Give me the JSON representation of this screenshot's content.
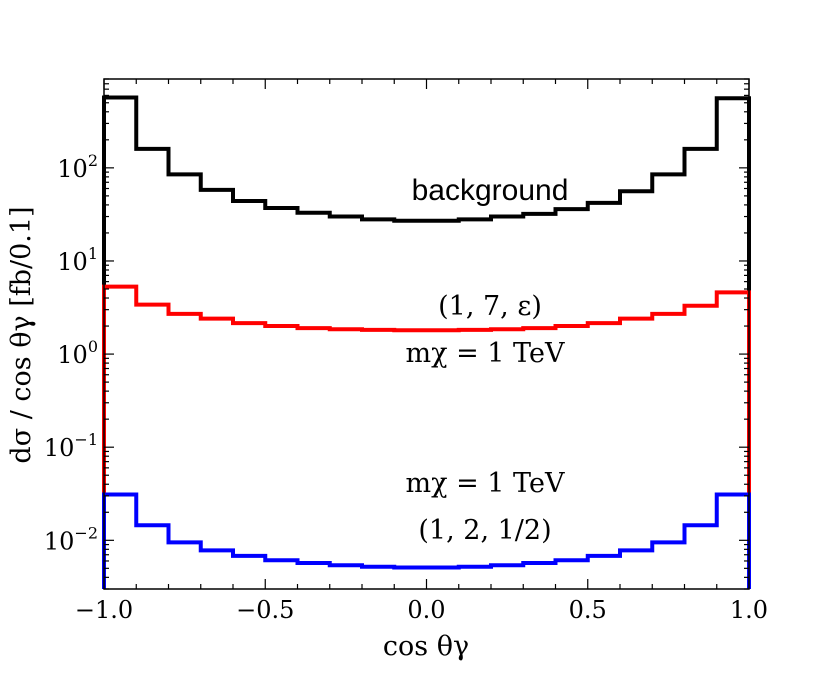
{
  "chart_data": {
    "type": "step",
    "title": "",
    "xlabel": "cos θγ",
    "ylabel": "dσ / cos θγ [fb/0.1]",
    "xlim": [
      -1.0,
      1.0
    ],
    "ylim": [
      0.003,
      900
    ],
    "yscale": "log",
    "x_ticks": [
      {
        "value": -1.0,
        "label": "−1.0"
      },
      {
        "value": -0.5,
        "label": "−0.5"
      },
      {
        "value": 0.0,
        "label": "0.0"
      },
      {
        "value": 0.5,
        "label": "0.5"
      },
      {
        "value": 1.0,
        "label": "1.0"
      }
    ],
    "y_ticks": [
      {
        "value": 0.01,
        "base": "10",
        "exp": "−2"
      },
      {
        "value": 0.1,
        "base": "10",
        "exp": "−1"
      },
      {
        "value": 1,
        "base": "10",
        "exp": "0"
      },
      {
        "value": 10,
        "base": "10",
        "exp": "1"
      },
      {
        "value": 100,
        "base": "10",
        "exp": "2"
      }
    ],
    "bin_edges": [
      -1.0,
      -0.9,
      -0.8,
      -0.7,
      -0.6,
      -0.5,
      -0.4,
      -0.3,
      -0.2,
      -0.1,
      0.0,
      0.1,
      0.2,
      0.3,
      0.4,
      0.5,
      0.6,
      0.7,
      0.8,
      0.9,
      1.0
    ],
    "series": [
      {
        "name": "background",
        "color": "#000000",
        "values": [
          570,
          160,
          85,
          58,
          44,
          37,
          33,
          30,
          28,
          27,
          27,
          28,
          30,
          32,
          36,
          42,
          56,
          85,
          160,
          560
        ]
      },
      {
        "name": "(1, 7, ε) mχ = 1 TeV",
        "color": "#ff0000",
        "values": [
          5.3,
          3.4,
          2.7,
          2.4,
          2.15,
          2.0,
          1.9,
          1.85,
          1.82,
          1.8,
          1.8,
          1.82,
          1.85,
          1.9,
          2.0,
          2.15,
          2.4,
          2.7,
          3.3,
          4.6
        ]
      },
      {
        "name": "mχ = 1 TeV (1, 2, 1/2)",
        "color": "#0000ff",
        "values": [
          0.031,
          0.0145,
          0.0095,
          0.0078,
          0.0068,
          0.0061,
          0.0057,
          0.0054,
          0.0052,
          0.0051,
          0.0051,
          0.0052,
          0.0054,
          0.0057,
          0.0061,
          0.0068,
          0.0078,
          0.0095,
          0.0145,
          0.031
        ]
      }
    ],
    "annotations": [
      {
        "id": "background",
        "text": "background"
      },
      {
        "id": "red_params",
        "text": "(1, 7, ε)"
      },
      {
        "id": "red_mass",
        "text": "mχ = 1 TeV"
      },
      {
        "id": "blue_mass",
        "text": "mχ = 1 TeV"
      },
      {
        "id": "blue_params",
        "text": "(1, 2, 1/2)"
      }
    ]
  }
}
